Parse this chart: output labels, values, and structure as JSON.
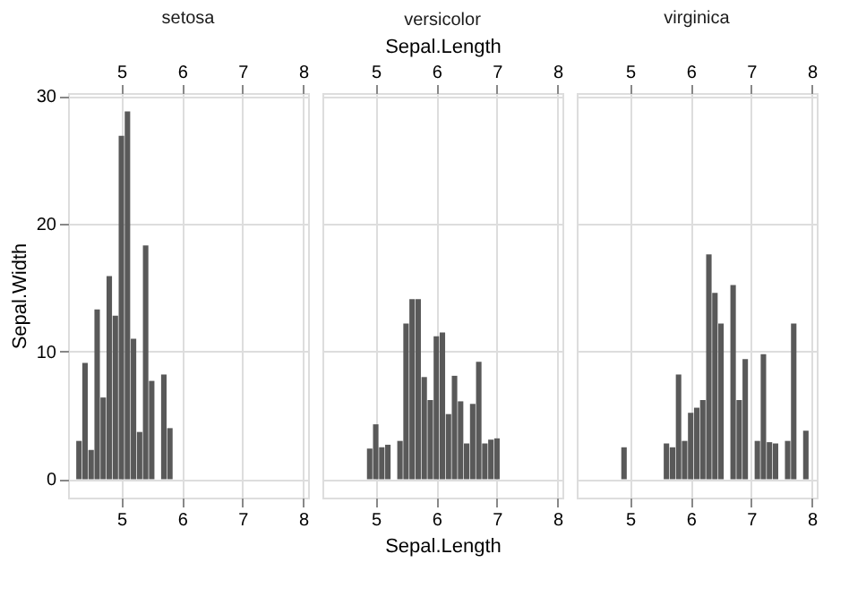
{
  "chart_data": [
    {
      "type": "bar",
      "title": "setosa",
      "ylabel": "Sepal.Width",
      "color": "#595959",
      "grid": true,
      "x": [
        4.3,
        4.4,
        4.5,
        4.6,
        4.7,
        4.8,
        4.9,
        5.0,
        5.1,
        5.2,
        5.3,
        5.4,
        5.5,
        5.7,
        5.8
      ],
      "values": [
        3.0,
        9.1,
        2.3,
        13.3,
        6.4,
        15.9,
        12.8,
        26.9,
        28.8,
        11.0,
        3.7,
        18.3,
        7.7,
        8.2,
        4.0
      ],
      "xlim": [
        4.12,
        8.08
      ],
      "xticks": [
        5,
        6,
        7,
        8
      ],
      "x2lim": [
        4.12,
        8.08
      ],
      "x2ticks": [
        5,
        6,
        7,
        8
      ],
      "ylim": [
        -1.44,
        30.24
      ],
      "yticks": [
        0,
        10,
        20,
        30
      ]
    },
    {
      "type": "bar",
      "title": "versicolor",
      "xlabel": "Sepal.Length",
      "x2label": "Sepal.Length",
      "color": "#595959",
      "grid": true,
      "tick_labels": "x",
      "x": [
        4.9,
        5.0,
        5.1,
        5.2,
        5.4,
        5.5,
        5.6,
        5.7,
        5.8,
        5.9,
        6.0,
        6.1,
        6.2,
        6.3,
        6.4,
        6.5,
        6.6,
        6.7,
        6.8,
        6.9,
        7.0
      ],
      "values": [
        2.4,
        4.3,
        2.5,
        2.7,
        3.0,
        12.2,
        14.1,
        14.1,
        8.0,
        6.2,
        11.2,
        11.5,
        5.1,
        8.1,
        6.1,
        2.8,
        5.9,
        9.2,
        2.8,
        3.1,
        3.2
      ],
      "xlim": [
        4.12,
        8.08
      ],
      "xticks": [
        5,
        6,
        7,
        8
      ],
      "x2lim": [
        4.12,
        8.08
      ],
      "x2ticks": [
        5,
        6,
        7,
        8
      ],
      "ylim": [
        -1.44,
        30.24
      ],
      "yticks": [
        0,
        10,
        20,
        30
      ]
    },
    {
      "type": "bar",
      "title": "virginica",
      "color": "#595959",
      "grid": true,
      "tick_labels": "x",
      "x": [
        4.9,
        5.6,
        5.7,
        5.8,
        5.9,
        6.0,
        6.1,
        6.2,
        6.3,
        6.4,
        6.5,
        6.7,
        6.8,
        6.9,
        7.1,
        7.2,
        7.3,
        7.4,
        7.6,
        7.7,
        7.9
      ],
      "values": [
        2.5,
        2.8,
        2.5,
        8.2,
        3.0,
        5.2,
        5.6,
        6.2,
        17.6,
        14.6,
        12.2,
        15.2,
        6.2,
        9.4,
        3.0,
        9.8,
        2.9,
        2.8,
        3.0,
        12.2,
        3.8
      ],
      "xlim": [
        4.12,
        8.08
      ],
      "xticks": [
        5,
        6,
        7,
        8
      ],
      "x2lim": [
        4.12,
        8.08
      ],
      "x2ticks": [
        5,
        6,
        7,
        8
      ],
      "ylim": [
        -1.44,
        30.24
      ],
      "yticks": [
        0,
        10,
        20,
        30
      ]
    }
  ]
}
